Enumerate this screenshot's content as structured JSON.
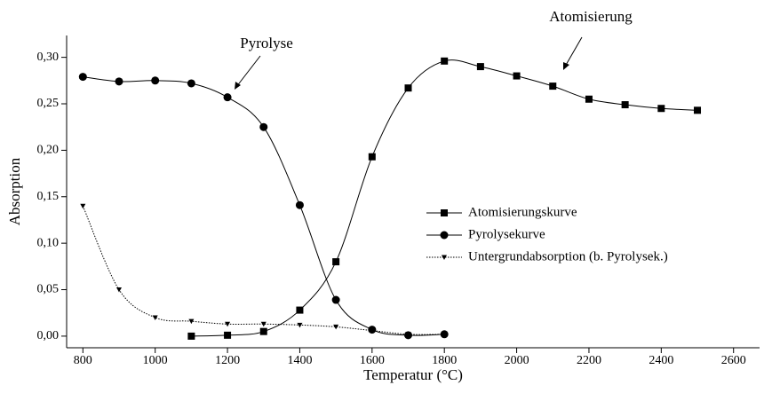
{
  "chart_data": {
    "type": "line",
    "xlabel": "Temperatur (°C)",
    "ylabel": "Absorption",
    "xlim": [
      755,
      2672
    ],
    "ylim": [
      -0.0125,
      0.3235
    ],
    "xticks": [
      800,
      1000,
      1200,
      1400,
      1600,
      1800,
      2000,
      2200,
      2400,
      2600
    ],
    "yticks": [
      {
        "value": 0,
        "label": "0,00"
      },
      {
        "value": 0.05,
        "label": "0,05"
      },
      {
        "value": 0.1,
        "label": "0,10"
      },
      {
        "value": 0.15,
        "label": "0,15"
      },
      {
        "value": 0.2,
        "label": "0,20"
      },
      {
        "value": 0.25,
        "label": "0,25"
      },
      {
        "value": 0.3,
        "label": "0,30"
      }
    ],
    "series": [
      {
        "name": "Atomisierungskurve",
        "color": "#000000",
        "marker": "square",
        "dash": "solid",
        "x": [
          1100,
          1200,
          1300,
          1400,
          1500,
          1600,
          1700,
          1800,
          1900,
          2000,
          2100,
          2200,
          2300,
          2400,
          2500
        ],
        "values": [
          0.0,
          0.001,
          0.005,
          0.028,
          0.08,
          0.193,
          0.267,
          0.296,
          0.29,
          0.28,
          0.269,
          0.255,
          0.249,
          0.245,
          0.243
        ]
      },
      {
        "name": "Pyrolysekurve",
        "color": "#000000",
        "marker": "circle",
        "dash": "solid",
        "x": [
          800,
          900,
          1000,
          1100,
          1200,
          1300,
          1400,
          1500,
          1600,
          1700,
          1800
        ],
        "values": [
          0.279,
          0.274,
          0.275,
          0.272,
          0.257,
          0.225,
          0.141,
          0.039,
          0.007,
          0.001,
          0.002
        ]
      },
      {
        "name": "Untergrundabsorption (b. Pyrolysek.)",
        "color": "#000000",
        "marker": "triangle-down",
        "dash": "dotted",
        "x": [
          800,
          900,
          1000,
          1100,
          1200,
          1300,
          1400,
          1500,
          1600,
          1700,
          1800
        ],
        "values": [
          0.14,
          0.05,
          0.02,
          0.016,
          0.013,
          0.013,
          0.012,
          0.01,
          0.006,
          0.002,
          0.002
        ]
      }
    ],
    "annotations": [
      "Pyrolyse",
      "Atomisierung"
    ]
  }
}
